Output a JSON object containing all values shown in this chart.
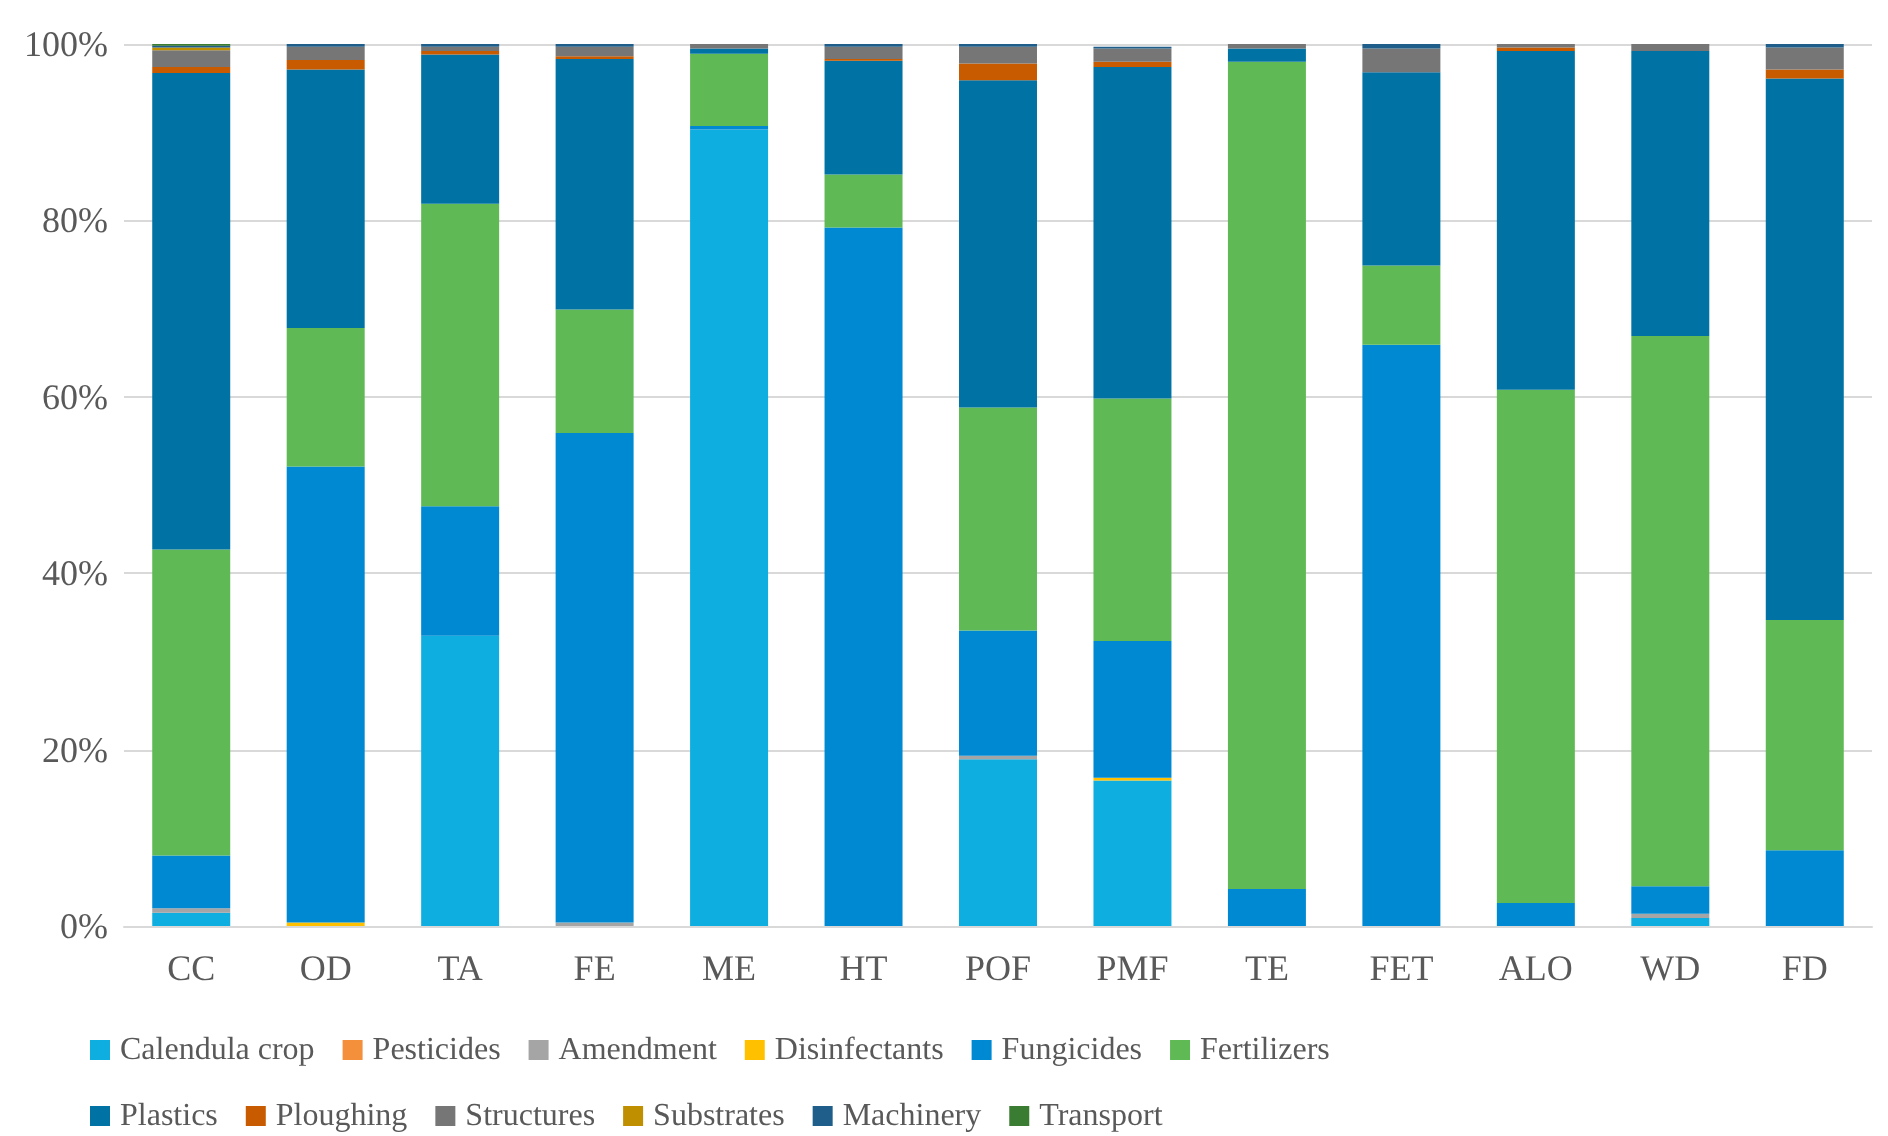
{
  "chart_data": {
    "type": "bar",
    "stacked": true,
    "grid": "y",
    "legend": "bottom",
    "categories": [
      "CC",
      "OD",
      "TA",
      "FE",
      "ME",
      "HT",
      "POF",
      "PMF",
      "TE",
      "FET",
      "ALO",
      "WD",
      "FD"
    ],
    "ylim": [
      0,
      100
    ],
    "yticks": [
      {
        "value": 0,
        "label": "0%"
      },
      {
        "value": 20,
        "label": "20%"
      },
      {
        "value": 40,
        "label": "40%"
      },
      {
        "value": 60,
        "label": "60%"
      },
      {
        "value": 80,
        "label": "80%"
      },
      {
        "value": 100,
        "label": "100%"
      }
    ],
    "series": [
      {
        "name": "Calendula crop",
        "color": "#0eaee0",
        "values": [
          1.5,
          0,
          32.9,
          0,
          90.3,
          0,
          18.9,
          16.5,
          0,
          0,
          0,
          0.9,
          0
        ]
      },
      {
        "name": "Pesticides",
        "color": "#f4903c",
        "values": [
          0,
          0,
          0,
          0,
          0,
          0,
          0,
          0,
          0,
          0,
          0,
          0,
          0
        ]
      },
      {
        "name": "Amendment",
        "color": "#a5a5a5",
        "values": [
          0.5,
          0,
          0,
          0.4,
          0,
          0,
          0.4,
          null,
          0,
          0,
          0,
          0.5,
          0
        ]
      },
      {
        "name": "Disinfectants",
        "color": "#ffc000",
        "values": [
          0,
          0.4,
          0,
          0,
          0,
          0,
          0,
          0.3,
          0,
          0,
          0,
          0,
          0
        ]
      },
      {
        "name": "Fungicides",
        "color": "#0089d3",
        "values": [
          6.0,
          51.7,
          14.7,
          55.5,
          0.4,
          79.2,
          14.2,
          15.5,
          4.2,
          65.9,
          2.6,
          3.1,
          8.6
        ]
      },
      {
        "name": "Fertilizers",
        "color": "#5fba55",
        "values": [
          34.7,
          15.7,
          34.3,
          14.0,
          8.2,
          6.0,
          25.3,
          27.5,
          93.8,
          9.0,
          58.2,
          62.4,
          26.1
        ]
      },
      {
        "name": "Plastics",
        "color": "#0072a3",
        "values": [
          54.0,
          29.3,
          16.9,
          28.4,
          0.6,
          12.9,
          37.1,
          37.6,
          1.5,
          21.9,
          38.4,
          32.3,
          61.4
        ]
      },
      {
        "name": "Ploughing",
        "color": "#c85a00",
        "values": [
          0.7,
          1.1,
          0.4,
          0.3,
          0,
          0.2,
          1.9,
          0.6,
          0,
          0,
          0.4,
          0,
          1.0
        ]
      },
      {
        "name": "Structures",
        "color": "#767676",
        "values": [
          1.9,
          1.5,
          0.5,
          1.1,
          0.5,
          1.4,
          1.9,
          1.5,
          0.5,
          2.7,
          0.4,
          0.8,
          2.5
        ]
      },
      {
        "name": "Substrates",
        "color": "#bf8f00",
        "values": [
          0.3,
          0,
          0,
          0,
          0,
          0,
          0,
          0,
          0,
          0,
          0,
          0,
          0
        ]
      },
      {
        "name": "Machinery",
        "color": "#1f5e8a",
        "values": [
          0.2,
          0.3,
          0.3,
          0.3,
          0,
          0.3,
          0.3,
          0.2,
          0,
          0.5,
          0,
          0,
          0.4
        ]
      },
      {
        "name": "Transport",
        "color": "#3a7d32",
        "values": [
          0.2,
          0,
          0,
          0,
          0,
          0,
          0,
          0,
          0,
          0,
          0,
          0,
          0
        ]
      }
    ]
  }
}
